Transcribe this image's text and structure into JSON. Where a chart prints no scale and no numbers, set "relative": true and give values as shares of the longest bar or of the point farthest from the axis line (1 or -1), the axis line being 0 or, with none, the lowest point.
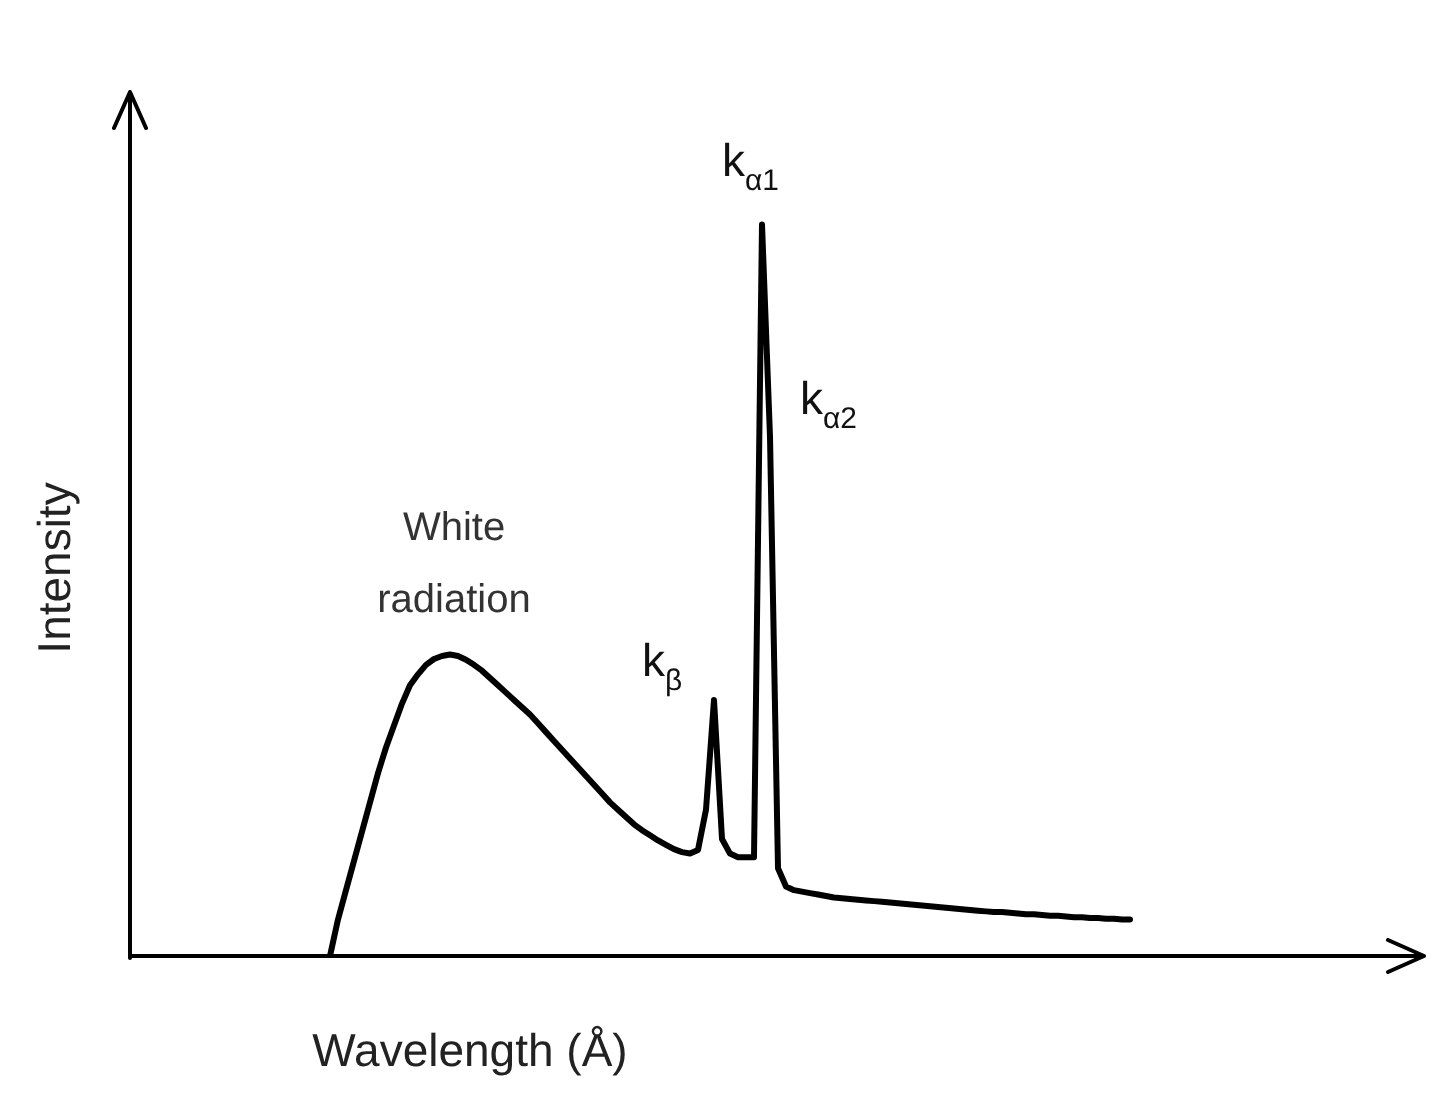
{
  "chart_data": {
    "type": "line",
    "relative": true,
    "xlabel": "Wavelength (Å)",
    "ylabel": "Intensity",
    "color": "#000000",
    "marker": "none",
    "annotations": [
      "White radiation",
      "k$_{β}$",
      "k$_{α1}$",
      "k$_{α2}$"
    ],
    "categories": [
      null,
      null,
      null,
      null,
      null,
      null,
      null,
      null,
      null,
      null,
      null,
      null,
      null,
      null,
      null,
      null,
      null,
      null,
      null,
      null,
      null,
      null,
      null,
      null,
      null,
      null,
      null,
      null,
      null,
      null,
      null,
      null,
      null,
      null,
      null,
      null,
      null,
      null,
      null,
      null,
      null,
      null,
      null,
      null,
      null,
      null,
      null,
      null,
      null,
      null,
      null,
      null,
      null,
      null,
      null,
      null,
      null,
      null,
      null,
      null,
      null,
      null,
      null,
      null,
      null,
      null,
      null,
      null,
      null,
      null,
      null,
      null,
      null,
      null,
      null,
      null,
      null,
      null,
      null,
      null,
      null,
      null,
      null,
      null,
      null,
      null,
      null,
      null,
      null,
      null,
      null,
      null,
      null,
      null,
      null,
      null,
      null,
      null,
      null,
      null,
      null,
      null,
      null,
      null,
      null,
      null,
      null,
      null,
      null,
      null,
      null,
      null,
      null,
      null,
      null,
      null,
      null,
      null,
      null,
      null,
      null,
      null,
      null,
      null,
      null,
      null,
      null,
      null,
      null,
      null,
      null,
      null,
      null,
      null,
      null,
      null,
      null,
      null,
      null,
      null,
      null,
      null,
      null,
      null,
      null,
      null,
      null,
      null,
      null,
      null,
      null,
      null,
      null,
      null,
      null,
      null,
      null,
      null,
      null,
      null,
      null
    ],
    "values": [
      null,
      null,
      null,
      null,
      null,
      null,
      null,
      null,
      null,
      null,
      null,
      null,
      null,
      null,
      null,
      null,
      null,
      null,
      null,
      null,
      null,
      null,
      null,
      null,
      null,
      0.0,
      0.05,
      0.09,
      0.13,
      0.17,
      0.21,
      0.25,
      0.285,
      0.315,
      0.345,
      0.37,
      0.385,
      0.398,
      0.406,
      0.41,
      0.412,
      0.41,
      0.405,
      0.398,
      0.39,
      0.38,
      0.37,
      0.36,
      0.35,
      0.34,
      0.33,
      0.318,
      0.306,
      0.294,
      0.282,
      0.27,
      0.258,
      0.246,
      0.234,
      0.222,
      0.21,
      0.2,
      0.19,
      0.18,
      0.172,
      0.165,
      0.158,
      0.152,
      0.146,
      0.142,
      0.14,
      0.145,
      0.2,
      0.35,
      0.16,
      0.14,
      0.135,
      0.135,
      0.135,
      1.0,
      0.71,
      0.12,
      0.095,
      0.09,
      0.088,
      0.086,
      0.084,
      0.082,
      0.08,
      0.079,
      0.078,
      0.077,
      0.076,
      0.075,
      0.074,
      0.073,
      0.072,
      0.071,
      0.07,
      0.069,
      0.068,
      0.067,
      0.066,
      0.065,
      0.064,
      0.063,
      0.062,
      0.061,
      0.06,
      0.06,
      0.059,
      0.058,
      0.057,
      0.057,
      0.056,
      0.055,
      0.055,
      0.054,
      0.053,
      0.053,
      0.052,
      0.052,
      0.051,
      0.051,
      0.05,
      0.05,
      null,
      null,
      null,
      null,
      null,
      null,
      null,
      null,
      null,
      null,
      null,
      null,
      null,
      null,
      null,
      null,
      null,
      null,
      null,
      null,
      null,
      null,
      null,
      null,
      null,
      null,
      null,
      null,
      null,
      null,
      null,
      null,
      null,
      null,
      null
    ]
  }
}
